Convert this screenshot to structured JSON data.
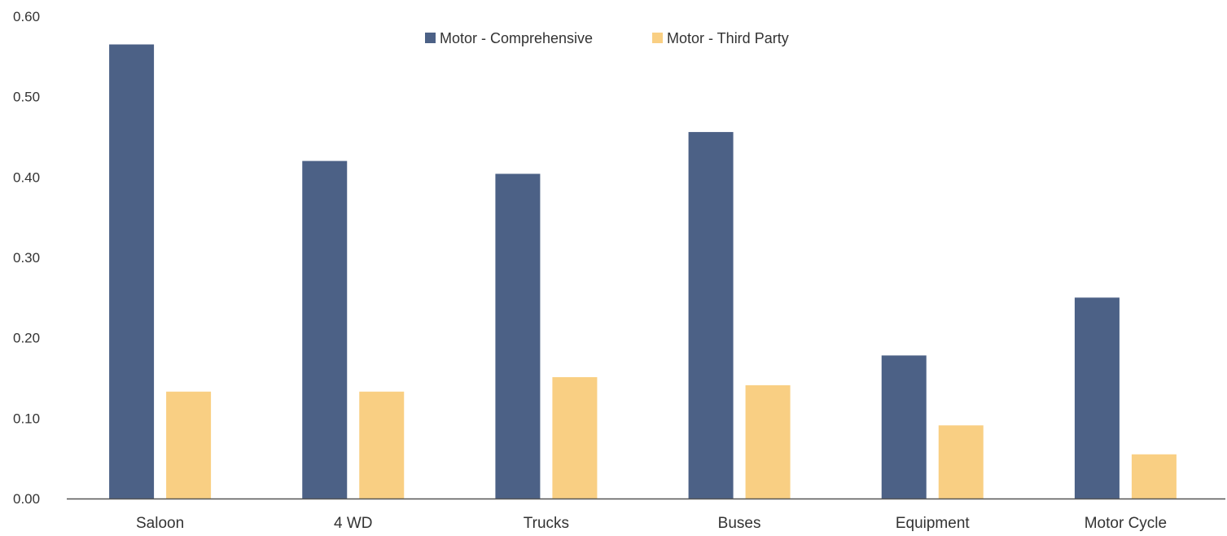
{
  "chart_data": {
    "type": "bar",
    "categories": [
      "Saloon",
      "4 WD",
      "Trucks",
      "Buses",
      "Equipment",
      "Motor Cycle"
    ],
    "series": [
      {
        "name": "Motor - Comprehensive",
        "color": "#4c6186",
        "values": [
          0.565,
          0.42,
          0.404,
          0.456,
          0.178,
          0.25
        ]
      },
      {
        "name": "Motor - Third Party",
        "color": "#f9cf83",
        "values": [
          0.133,
          0.133,
          0.151,
          0.141,
          0.091,
          0.055
        ]
      }
    ],
    "yticks": [
      "0.00",
      "0.10",
      "0.20",
      "0.30",
      "0.40",
      "0.50",
      "0.60"
    ],
    "ylim": [
      0,
      0.6
    ],
    "grid": false,
    "legend_position": "top-center",
    "title": "",
    "xlabel": "",
    "ylabel": ""
  }
}
